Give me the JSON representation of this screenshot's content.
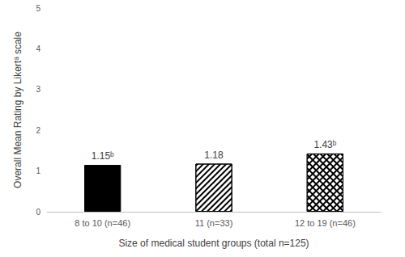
{
  "chart_data": {
    "type": "bar",
    "x_label": "Size of medical student groups (total n=125)",
    "y_label": "Overall Mean Rating by Likertᵃ scale",
    "categories": [
      "8 to 10 (n=46)",
      "11 (n=33)",
      "12 to 19 (n=46)"
    ],
    "values": [
      1.15,
      1.18,
      1.43
    ],
    "value_labels": [
      "1.15ᵇ",
      "1.18",
      "1.43ᵇ"
    ],
    "color": "#000000",
    "ylim": [
      0,
      5
    ],
    "yticks": [
      0,
      1,
      2,
      3,
      4,
      5
    ],
    "grid": false,
    "data_labels": true
  }
}
